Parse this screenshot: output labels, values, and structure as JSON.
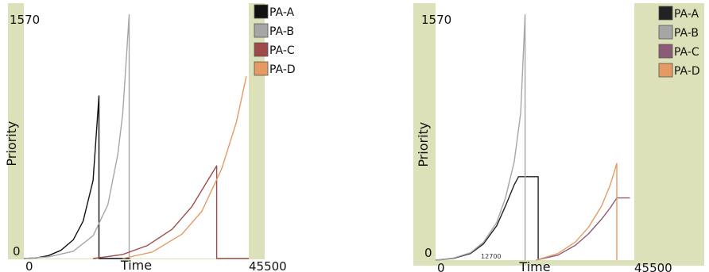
{
  "chart_data": [
    {
      "type": "line",
      "title": "",
      "xlabel": "Time",
      "ylabel": "Priority",
      "xlim": [
        0,
        45500
      ],
      "ylim": [
        0,
        1570
      ],
      "x_tick_labels": [
        "0",
        "45500"
      ],
      "y_tick_labels": [
        "0",
        "1570"
      ],
      "legend": "right",
      "grid": false,
      "background_color": "#dde1b9",
      "plot_color": "#ffffff",
      "series": [
        {
          "name": "PA-A",
          "color": "#111111",
          "x": [
            0,
            2500,
            5000,
            7500,
            10000,
            12000,
            14000,
            15200,
            15200,
            21500
          ],
          "y": [
            0,
            4,
            18,
            50,
            115,
            230,
            480,
            1000,
            0,
            0
          ]
        },
        {
          "name": "PA-B",
          "color": "#a6a6a6",
          "x": [
            0,
            5000,
            10000,
            14000,
            17000,
            19000,
            20000,
            21300,
            21300
          ],
          "y": [
            0,
            10,
            45,
            140,
            330,
            640,
            890,
            1500,
            0
          ]
        },
        {
          "name": "PA-C",
          "color": "#9e4a4a",
          "x": [
            14000,
            20000,
            25000,
            30000,
            34000,
            37000,
            39000,
            39000,
            45500
          ],
          "y": [
            0,
            25,
            80,
            180,
            320,
            470,
            570,
            0,
            0
          ]
        },
        {
          "name": "PA-D",
          "color": "#e59a63",
          "x": [
            20000,
            26000,
            32000,
            36000,
            40000,
            43000,
            45000
          ],
          "y": [
            0,
            40,
            150,
            290,
            550,
            840,
            1120
          ]
        }
      ]
    },
    {
      "type": "line",
      "title": "",
      "xlabel": "Time",
      "ylabel": "Priority",
      "xlim": [
        0,
        45500
      ],
      "ylim": [
        0,
        1570
      ],
      "x_tick_labels": [
        "0",
        "45500"
      ],
      "y_tick_labels": [
        "0",
        "1570"
      ],
      "legend": "right",
      "grid": false,
      "background_color": "#dde1b9",
      "plot_color": "#ffffff",
      "annotations": [
        {
          "text": "12700",
          "x": 12700,
          "y": 0
        }
      ],
      "series": [
        {
          "name": "PA-A",
          "color": "#222222",
          "x": [
            0,
            4000,
            8000,
            11000,
            14000,
            16000,
            18000,
            19000,
            19000,
            23500,
            23500
          ],
          "y": [
            0,
            10,
            40,
            100,
            210,
            330,
            460,
            510,
            510,
            510,
            0
          ]
        },
        {
          "name": "PA-B",
          "color": "#a6a6a6",
          "x": [
            0,
            4000,
            8000,
            11000,
            14000,
            16000,
            18000,
            19500,
            20500,
            20500
          ],
          "y": [
            0,
            12,
            45,
            110,
            230,
            380,
            600,
            900,
            1500,
            0
          ]
        },
        {
          "name": "PA-C",
          "color": "#8b5b78",
          "x": [
            23000,
            28000,
            32000,
            35000,
            38000,
            40000,
            41500,
            44500
          ],
          "y": [
            0,
            30,
            90,
            160,
            250,
            320,
            380,
            380
          ]
        },
        {
          "name": "PA-D",
          "color": "#e59a63",
          "x": [
            23000,
            28000,
            32000,
            35000,
            38000,
            40000,
            41500,
            41500
          ],
          "y": [
            0,
            40,
            110,
            200,
            330,
            460,
            590,
            0
          ]
        }
      ]
    }
  ]
}
